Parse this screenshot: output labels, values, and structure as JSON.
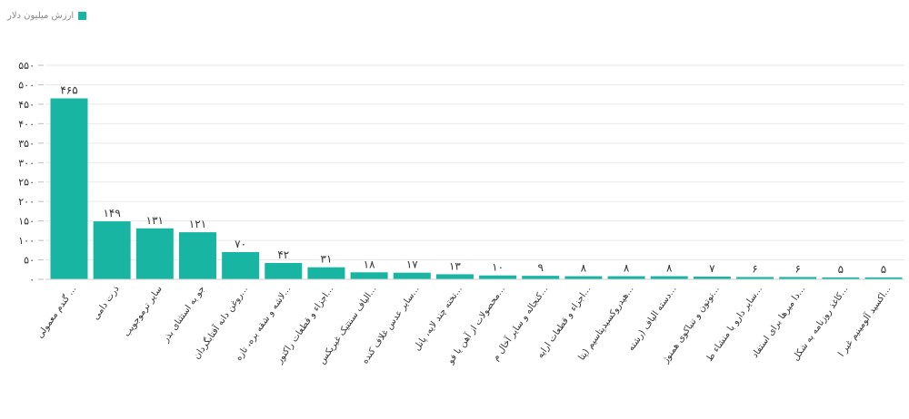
{
  "legend": {
    "label": "ارزش میلیون دلار",
    "color": "#19b5a3",
    "placement": "top-left"
  },
  "colors": {
    "bar": "#19b5a3",
    "grid": "#e9e9e9",
    "axis_text": "#333333"
  },
  "chart_data": {
    "type": "bar",
    "title": "",
    "xlabel": "",
    "ylabel": "",
    "ylim": [
      0,
      550
    ],
    "grid": true,
    "y_ticks": [
      {
        "value": 0,
        "label": "۰"
      },
      {
        "value": 50,
        "label": "۵۰"
      },
      {
        "value": 100,
        "label": "۱۰۰"
      },
      {
        "value": 150,
        "label": "۱۵۰"
      },
      {
        "value": 200,
        "label": "۲۰۰"
      },
      {
        "value": 250,
        "label": "۲۵۰"
      },
      {
        "value": 300,
        "label": "۳۰۰"
      },
      {
        "value": 350,
        "label": "۳۵۰"
      },
      {
        "value": 400,
        "label": "۴۰۰"
      },
      {
        "value": 450,
        "label": "۴۵۰"
      },
      {
        "value": 500,
        "label": "۵۰۰"
      },
      {
        "value": 550,
        "label": "۵۵۰"
      }
    ],
    "categories": [
      "گندم معمولی ...",
      "ذرت دامی",
      "سایر ترموجویب",
      "جو به استثنای بذر",
      "روغن دانه آفتابگردان...",
      "لاشه و شقه بره، تازه...",
      "اجزاء و قطعات راکتور...",
      "الیاف سنتتیک غیریکس...",
      "سایر عدس غلاف کنده...",
      "تخته چند لایه، پانل...",
      "محصولات از آهن یا فو...",
      "کنجاله و سایر آخال م...",
      "اجزاء و قطعات ارایه...",
      "هیدروکسیدپتاسیم (پتا...",
      "دسته الیاف (رشته...",
      "توتون و تنباکوی همنوژ...",
      "سایر دارو با منشاء ط...",
      "دا میرها برای استفاد...",
      "کاغذ روزنامه به شکل...",
      "اکسید آلومینیم غیر ا..."
    ],
    "values": [
      465,
      149,
      131,
      121,
      70,
      42,
      31,
      18,
      17,
      13,
      10,
      9,
      8,
      8,
      8,
      7,
      6,
      6,
      5,
      5
    ],
    "data_labels": [
      "۴۶۵",
      "۱۴۹",
      "۱۳۱",
      "۱۲۱",
      "۷۰",
      "۴۲",
      "۳۱",
      "۱۸",
      "۱۷",
      "۱۳",
      "۱۰",
      "۹",
      "۸",
      "۸",
      "۸",
      "۷",
      "۶",
      "۶",
      "۵",
      "۵"
    ]
  }
}
